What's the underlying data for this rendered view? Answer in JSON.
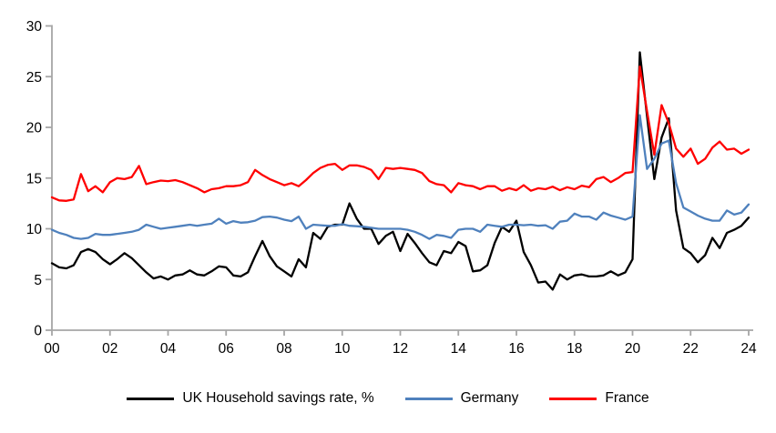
{
  "chart_data": {
    "type": "line",
    "title": "",
    "xlabel": "",
    "ylabel": "",
    "x_start_year": 2000,
    "points_per_year": 4,
    "x_tick_labels": [
      "00",
      "02",
      "04",
      "06",
      "08",
      "10",
      "12",
      "14",
      "16",
      "18",
      "20",
      "22",
      "24"
    ],
    "y_ticks": [
      0,
      5,
      10,
      15,
      20,
      25,
      30
    ],
    "ylim": [
      0,
      30
    ],
    "grid": false,
    "legend_position": "bottom",
    "axis_color": "#a6a6a6",
    "series": [
      {
        "id": "uk",
        "name": "UK Household savings rate, %",
        "color": "#000000",
        "values": [
          6.6,
          6.2,
          6.1,
          6.4,
          7.7,
          8.0,
          7.7,
          7.0,
          6.5,
          7.0,
          7.6,
          7.1,
          6.4,
          5.7,
          5.1,
          5.3,
          5.0,
          5.4,
          5.5,
          5.9,
          5.5,
          5.4,
          5.8,
          6.3,
          6.2,
          5.4,
          5.3,
          5.7,
          7.3,
          8.8,
          7.3,
          6.3,
          5.8,
          5.3,
          7.0,
          6.2,
          9.6,
          9.0,
          10.2,
          10.4,
          10.4,
          12.5,
          11.0,
          10.0,
          10.0,
          8.5,
          9.3,
          9.7,
          7.8,
          9.5,
          8.6,
          7.6,
          6.7,
          6.4,
          7.8,
          7.6,
          8.7,
          8.3,
          5.8,
          5.9,
          6.4,
          8.6,
          10.2,
          9.7,
          10.8,
          7.7,
          6.4,
          4.7,
          4.8,
          4.0,
          5.5,
          5.0,
          5.4,
          5.5,
          5.3,
          5.3,
          5.4,
          5.8,
          5.4,
          5.7,
          7.0,
          27.4,
          21.1,
          14.9,
          19.0,
          20.9,
          11.8,
          8.1,
          7.6,
          6.7,
          7.4,
          9.1,
          8.1,
          9.6,
          9.9,
          10.3,
          11.1
        ]
      },
      {
        "id": "germany",
        "name": "Germany",
        "color": "#4f81bd",
        "values": [
          9.9,
          9.6,
          9.4,
          9.1,
          9.0,
          9.1,
          9.5,
          9.4,
          9.4,
          9.5,
          9.6,
          9.7,
          9.9,
          10.4,
          10.2,
          10.0,
          10.1,
          10.2,
          10.3,
          10.4,
          10.3,
          10.4,
          10.5,
          11.0,
          10.5,
          10.75,
          10.6,
          10.65,
          10.8,
          11.15,
          11.2,
          11.1,
          10.9,
          10.75,
          11.2,
          10.0,
          10.4,
          10.35,
          10.3,
          10.3,
          10.45,
          10.3,
          10.25,
          10.2,
          10.1,
          10.0,
          10.0,
          10.0,
          10.0,
          9.9,
          9.7,
          9.4,
          9.0,
          9.4,
          9.3,
          9.1,
          9.9,
          10.0,
          10.0,
          9.7,
          10.4,
          10.3,
          10.2,
          10.4,
          10.4,
          10.35,
          10.4,
          10.3,
          10.35,
          10.0,
          10.7,
          10.8,
          11.5,
          11.2,
          11.2,
          10.9,
          11.6,
          11.3,
          11.1,
          10.9,
          11.2,
          21.2,
          15.9,
          16.9,
          18.4,
          18.7,
          14.5,
          12.1,
          11.7,
          11.3,
          11.0,
          10.8,
          10.8,
          11.8,
          11.4,
          11.6,
          12.4
        ]
      },
      {
        "id": "france",
        "name": "France",
        "color": "#ff0000",
        "values": [
          13.1,
          12.8,
          12.75,
          12.9,
          15.4,
          13.7,
          14.2,
          13.6,
          14.6,
          15.0,
          14.9,
          15.1,
          16.2,
          14.4,
          14.6,
          14.75,
          14.7,
          14.8,
          14.6,
          14.3,
          14.0,
          13.6,
          13.9,
          14.0,
          14.2,
          14.2,
          14.3,
          14.6,
          15.8,
          15.3,
          14.9,
          14.6,
          14.3,
          14.5,
          14.2,
          14.8,
          15.5,
          16.0,
          16.3,
          16.4,
          15.8,
          16.25,
          16.25,
          16.1,
          15.8,
          14.9,
          16.0,
          15.9,
          16.0,
          15.9,
          15.8,
          15.5,
          14.7,
          14.4,
          14.3,
          13.6,
          14.5,
          14.3,
          14.2,
          13.9,
          14.2,
          14.2,
          13.75,
          14.0,
          13.8,
          14.3,
          13.75,
          14.0,
          13.9,
          14.15,
          13.8,
          14.1,
          13.9,
          14.25,
          14.1,
          14.9,
          15.1,
          14.6,
          15.0,
          15.5,
          15.6,
          26.0,
          21.6,
          17.3,
          22.2,
          20.4,
          17.9,
          17.1,
          17.9,
          16.4,
          16.9,
          18.0,
          18.6,
          17.8,
          17.9,
          17.4,
          17.8
        ]
      }
    ]
  }
}
